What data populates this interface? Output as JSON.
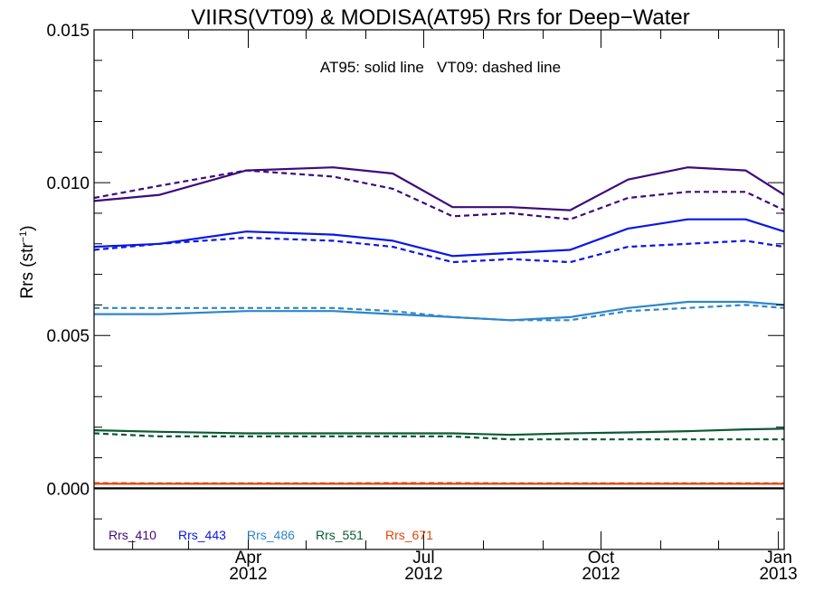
{
  "chart_data": {
    "type": "line",
    "title": "VIIRS(VT09) & MODISA(AT95)  Rrs for Deep−Water",
    "annotation": "AT95: solid line   VT09: dashed line",
    "ylabel_main": "Rrs (str",
    "ylabel_sup": "−1",
    "ylabel_close": ")",
    "xlim": [
      "2012-01-12",
      "2013-01-04"
    ],
    "ylim": [
      -0.002,
      0.015
    ],
    "yticks": [
      {
        "value": 0.0,
        "label": "0.000"
      },
      {
        "value": 0.005,
        "label": "0.005"
      },
      {
        "value": 0.01,
        "label": "0.010"
      },
      {
        "value": 0.015,
        "label": "0.015"
      }
    ],
    "xticks": [
      {
        "date": "2012-04-01",
        "month": "Apr",
        "year": "2012"
      },
      {
        "date": "2012-07-01",
        "month": "Jul",
        "year": "2012"
      },
      {
        "date": "2012-10-01",
        "month": "Oct",
        "year": "2012"
      },
      {
        "date": "2013-01-01",
        "month": "Jan",
        "year": "2013"
      }
    ],
    "x": [
      "2012-01-12",
      "2012-02-15",
      "2012-03-31",
      "2012-05-15",
      "2012-06-15",
      "2012-07-16",
      "2012-08-15",
      "2012-09-15",
      "2012-10-15",
      "2012-11-15",
      "2012-12-15",
      "2013-01-04"
    ],
    "series": [
      {
        "name": "Rrs_410",
        "color": "#3d0a7c",
        "at95": [
          0.0094,
          0.0096,
          0.0104,
          0.0105,
          0.0103,
          0.0092,
          0.0092,
          0.0091,
          0.0101,
          0.0105,
          0.0104,
          0.0096
        ],
        "vt09": [
          0.0095,
          0.0099,
          0.0104,
          0.0102,
          0.0098,
          0.0089,
          0.009,
          0.0088,
          0.0095,
          0.0097,
          0.0097,
          0.0091
        ]
      },
      {
        "name": "Rrs_443",
        "color": "#0a16e8",
        "at95": [
          0.0079,
          0.008,
          0.0084,
          0.0083,
          0.0081,
          0.0076,
          0.0077,
          0.0078,
          0.0085,
          0.0088,
          0.0088,
          0.0084
        ],
        "vt09": [
          0.0078,
          0.008,
          0.0082,
          0.0081,
          0.0079,
          0.0074,
          0.0075,
          0.0074,
          0.0079,
          0.008,
          0.0081,
          0.0079
        ],
        "at95_x_note": ""
      },
      {
        "name": "Rrs_486",
        "color": "#2f86c8",
        "at95": [
          0.0057,
          0.0057,
          0.0058,
          0.0058,
          0.0057,
          0.0056,
          0.0055,
          0.0056,
          0.0059,
          0.0061,
          0.0061,
          0.006
        ],
        "vt09": [
          0.0059,
          0.0059,
          0.0059,
          0.0059,
          0.0058,
          0.0056,
          0.0055,
          0.0055,
          0.0058,
          0.0059,
          0.006,
          0.0059
        ]
      },
      {
        "name": "Rrs_551",
        "color": "#0b5a36",
        "at95": [
          0.0019,
          0.00185,
          0.0018,
          0.0018,
          0.0018,
          0.0018,
          0.00175,
          0.0018,
          0.00183,
          0.00187,
          0.00193,
          0.00195
        ],
        "vt09": [
          0.0018,
          0.0017,
          0.0017,
          0.0017,
          0.0017,
          0.0017,
          0.0016,
          0.0016,
          0.0016,
          0.0016,
          0.0016,
          0.0016
        ]
      },
      {
        "name": "Rrs_671",
        "color": "#e2450e",
        "at95": [
          0.00015,
          0.00015,
          0.00015,
          0.00015,
          0.00015,
          0.00015,
          0.00015,
          0.00015,
          0.00015,
          0.00015,
          0.00015,
          0.00015
        ],
        "vt09": [
          0.00017,
          0.00016,
          0.00016,
          0.00016,
          0.00017,
          0.00017,
          0.00016,
          0.00016,
          0.00016,
          0.00016,
          0.00016,
          0.00016
        ]
      }
    ],
    "zero_line": true,
    "grid": false,
    "legend_placement": "bottom-left"
  }
}
